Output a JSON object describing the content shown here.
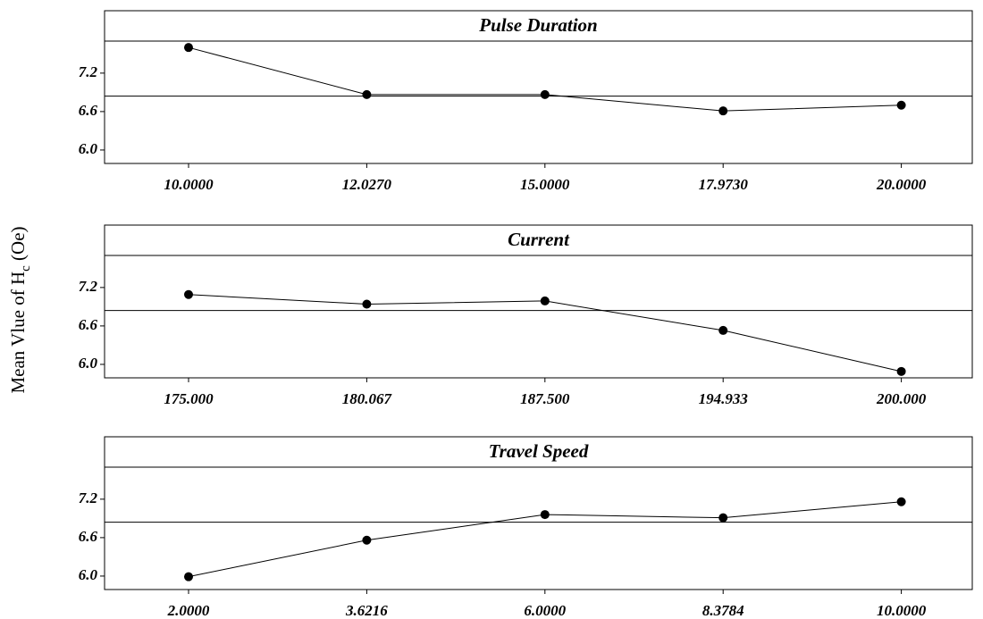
{
  "y_label_parts": [
    "Mean Vlue of H",
    "c",
    " (Oe)"
  ],
  "chart_data": [
    {
      "type": "line",
      "title": "Pulse Duration",
      "categories": [
        "10.0000",
        "12.0270",
        "15.0000",
        "17.9730",
        "20.0000"
      ],
      "values": [
        7.6,
        6.865,
        6.865,
        6.61,
        6.7
      ],
      "reference_line": 6.84,
      "color": "#000000",
      "ylim": [
        5.79,
        7.7
      ],
      "yticks": [
        {
          "value": 6,
          "label": "6.0"
        },
        6.6,
        7.2
      ]
    },
    {
      "type": "line",
      "title": "Current",
      "categories": [
        "175.000",
        "180.067",
        "187.500",
        "194.933",
        "200.000"
      ],
      "values": [
        7.09,
        6.94,
        6.99,
        6.53,
        5.89
      ],
      "reference_line": 6.84,
      "color": "#000000",
      "ylim": [
        5.79,
        7.7
      ],
      "yticks": [
        {
          "value": 6,
          "label": "6.0"
        },
        6.6,
        7.2
      ]
    },
    {
      "type": "line",
      "title": "Travel Speed",
      "categories": [
        "2.0000",
        "3.6216",
        "6.0000",
        "8.3784",
        "10.0000"
      ],
      "values": [
        5.99,
        6.56,
        6.96,
        6.91,
        7.16
      ],
      "reference_line": 6.84,
      "color": "#000000",
      "ylim": [
        5.79,
        7.7
      ],
      "yticks": [
        {
          "value": 6,
          "label": "6.0"
        },
        6.6,
        7.2
      ]
    }
  ]
}
